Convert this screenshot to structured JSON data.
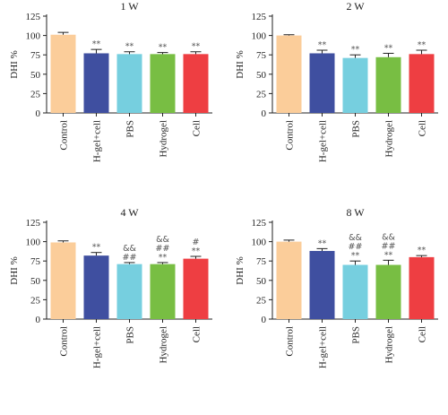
{
  "colors": {
    "Control": "#FBCD9A",
    "H-gel+cell": "#3F4FA0",
    "PBS": "#76CFDF",
    "Hydrogel": "#78BE43",
    "Cell": "#EE3E42"
  },
  "chart_data": [
    {
      "type": "bar",
      "title": "1 W",
      "ylabel": "DHI %",
      "ylim": [
        0,
        125
      ],
      "yticks": [
        "0",
        "25",
        "50",
        "75",
        "100",
        "125"
      ],
      "categories": [
        "Control",
        "H-gel+cell",
        "PBS",
        "Hydrogel",
        "Cell"
      ],
      "values": [
        101,
        77,
        76,
        76,
        76
      ],
      "errors": [
        3,
        5,
        3,
        2,
        3
      ],
      "annotations": [
        [],
        [
          "**"
        ],
        [
          "**"
        ],
        [
          "**"
        ],
        [
          "**"
        ]
      ]
    },
    {
      "type": "bar",
      "title": "2 W",
      "ylabel": "DHI %",
      "ylim": [
        0,
        125
      ],
      "yticks": [
        "0",
        "25",
        "50",
        "75",
        "100",
        "125"
      ],
      "categories": [
        "Control",
        "H-gel+cell",
        "PBS",
        "Hydrogel",
        "Cell"
      ],
      "values": [
        100,
        77,
        71,
        72,
        76
      ],
      "errors": [
        1,
        4,
        4,
        5,
        5
      ],
      "annotations": [
        [],
        [
          "**"
        ],
        [
          "**"
        ],
        [
          "**"
        ],
        [
          "**"
        ]
      ]
    },
    {
      "type": "bar",
      "title": "4 W",
      "ylabel": "DHI %",
      "ylim": [
        0,
        125
      ],
      "yticks": [
        "0",
        "25",
        "50",
        "75",
        "100",
        "125"
      ],
      "categories": [
        "Control",
        "H-gel+cell",
        "PBS",
        "Hydrogel",
        "Cell"
      ],
      "values": [
        99,
        82,
        71,
        71,
        78
      ],
      "errors": [
        2,
        4,
        2,
        2,
        3
      ],
      "annotations": [
        [],
        [
          "**"
        ],
        [
          "&&",
          "##"
        ],
        [
          "&&",
          "##",
          "**"
        ],
        [
          "#",
          "**"
        ]
      ]
    },
    {
      "type": "bar",
      "title": "8 W",
      "ylabel": "DHI %",
      "ylim": [
        0,
        125
      ],
      "yticks": [
        "0",
        "25",
        "50",
        "75",
        "100",
        "125"
      ],
      "categories": [
        "Control",
        "H-gel+cell",
        "PBS",
        "Hydrogel",
        "Cell"
      ],
      "values": [
        100,
        88,
        70,
        70,
        80
      ],
      "errors": [
        2,
        3,
        5,
        6,
        2
      ],
      "annotations": [
        [],
        [
          "**"
        ],
        [
          "&&",
          "##",
          "**"
        ],
        [
          "&&",
          "##",
          "**"
        ],
        [
          "**"
        ]
      ]
    }
  ]
}
